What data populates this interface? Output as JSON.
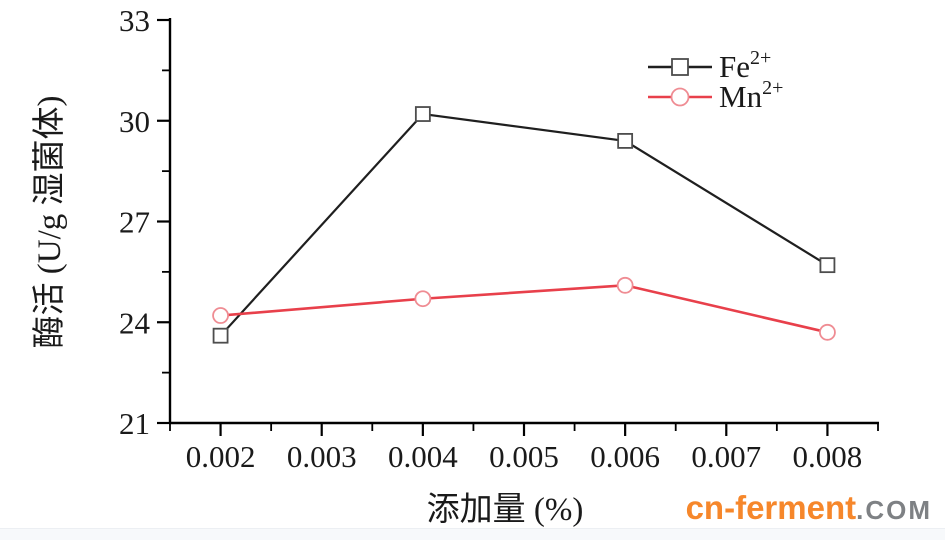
{
  "chart_data": {
    "type": "line",
    "title": "",
    "xlabel": "添加量 (%)",
    "ylabel": "酶活 (U/g 湿菌体)",
    "x": [
      0.002,
      0.004,
      0.006,
      0.008
    ],
    "series": [
      {
        "name": "Fe2+",
        "label_base": "Fe",
        "label_sup": "2+",
        "line_color": "#1f1f1f",
        "marker": "square",
        "marker_color": "#4d4d4d",
        "values": [
          23.6,
          30.2,
          29.4,
          25.7
        ]
      },
      {
        "name": "Mn2+",
        "label_base": "Mn",
        "label_sup": "2+",
        "line_color": "#e8404b",
        "marker": "circle",
        "marker_color": "#ef8c93",
        "values": [
          24.2,
          24.7,
          25.1,
          23.7
        ]
      }
    ],
    "xlim": [
      0.0015,
      0.0085
    ],
    "ylim": [
      21,
      33
    ],
    "x_major_ticks": [
      0.002,
      0.003,
      0.004,
      0.005,
      0.006,
      0.007,
      0.008
    ],
    "x_minor_step": 0.0005,
    "y_major_ticks": [
      21,
      24,
      27,
      30,
      33
    ],
    "y_minor_step": 1.5,
    "x_tick_decimals": 3,
    "grid": false,
    "legend_position": "top-right",
    "axis_color": "#000000"
  },
  "watermark": {
    "brand": "cn-ferment",
    "suffix": ".COM",
    "brand_color": "#f6872b",
    "suffix_color": "#7e8184"
  }
}
